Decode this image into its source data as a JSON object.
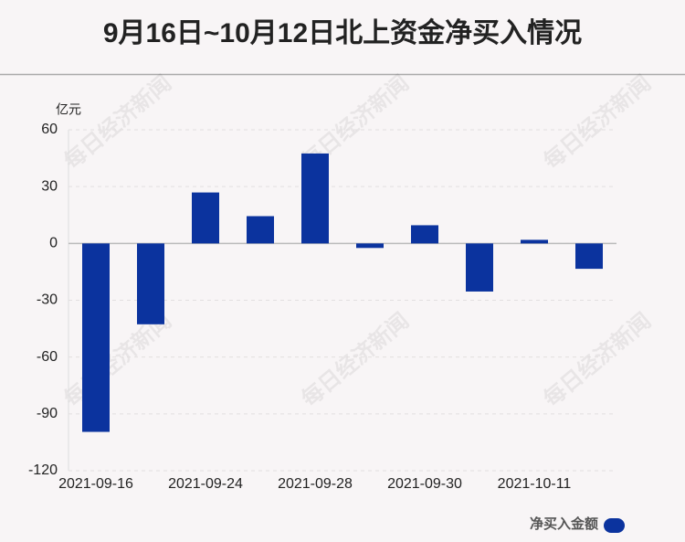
{
  "chart_data": {
    "type": "bar",
    "title": "9月16日~10月12日北上资金净买入情况",
    "y_axis_unit": "亿元",
    "watermark": "每日经济新闻",
    "categories": [
      "2021-09-16",
      null,
      "2021-09-24",
      null,
      "2021-09-28",
      null,
      "2021-09-30",
      null,
      "2021-10-11",
      null
    ],
    "series": [
      {
        "name": "净买入金额",
        "color": "#0b339e",
        "values": [
          -99.5,
          -42.7,
          26.9,
          14.4,
          47.5,
          -2.4,
          9.6,
          -25.4,
          1.9,
          -13.4
        ]
      }
    ],
    "ylim": [
      -120,
      60
    ],
    "yticks": [
      -120,
      -90,
      -60,
      -30,
      0,
      30,
      60
    ],
    "grid": true
  }
}
